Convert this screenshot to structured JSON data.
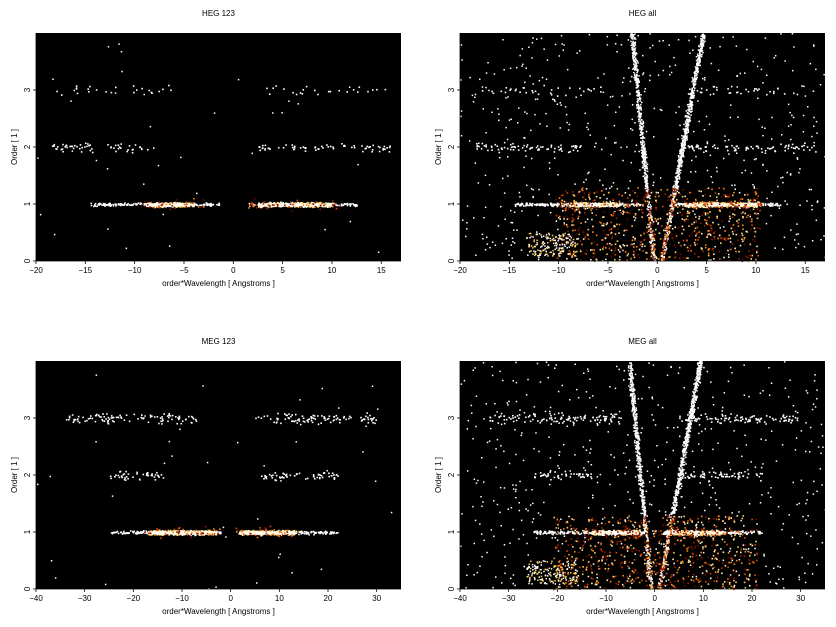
{
  "chart_data": [
    {
      "type": "heatmap",
      "title": "HEG 123",
      "xlabel": "order*Wavelength [ Angstroms ]",
      "ylabel": "Order [ 1 ]",
      "xlim": [
        -20,
        17
      ],
      "ylim": [
        0,
        4
      ],
      "xticks": [
        -20,
        -15,
        -10,
        -5,
        0,
        5,
        10,
        15
      ],
      "yticks": [
        0,
        1,
        2,
        3
      ],
      "background": "#000000",
      "grid": false,
      "bands": [
        {
          "order": 1,
          "ranges": [
            [
              -14.5,
              -1.5
            ],
            [
              1.5,
              12.5
            ]
          ],
          "core": [
            [
              -9,
              -4
            ],
            [
              2.5,
              10
            ]
          ],
          "density": 0.55
        },
        {
          "order": 2,
          "ranges": [
            [
              -18.5,
              -7.5
            ],
            [
              2.5,
              16
            ]
          ],
          "density": 0.18
        },
        {
          "order": 3,
          "ranges": [
            [
              -18.5,
              -5
            ],
            [
              3,
              16
            ]
          ],
          "density": 0.05
        }
      ],
      "wedge": false
    },
    {
      "type": "heatmap",
      "title": "HEG all",
      "xlabel": "order*Wavelength [ Angstroms ]",
      "ylabel": "Order [ 1 ]",
      "xlim": [
        -20,
        17
      ],
      "ylim": [
        0,
        4
      ],
      "xticks": [
        -20,
        -15,
        -10,
        -5,
        0,
        5,
        10,
        15
      ],
      "yticks": [
        0,
        1,
        2,
        3
      ],
      "background": "#000000",
      "grid": false,
      "bands": [
        {
          "order": 1,
          "ranges": [
            [
              -14.5,
              -1.5
            ],
            [
              1.5,
              12.5
            ]
          ],
          "core": [
            [
              -9,
              -4
            ],
            [
              2.5,
              10
            ]
          ],
          "density": 0.6
        },
        {
          "order": 2,
          "ranges": [
            [
              -18.5,
              -7.5
            ],
            [
              2.5,
              16
            ]
          ],
          "density": 0.22
        },
        {
          "order": 3,
          "ranges": [
            [
              -18.5,
              -5
            ],
            [
              3,
              16
            ]
          ],
          "density": 0.08
        }
      ],
      "wedge": true
    },
    {
      "type": "heatmap",
      "title": "MEG 123",
      "xlabel": "order*Wavelength [ Angstroms ]",
      "ylabel": "Order [ 1 ]",
      "xlim": [
        -40,
        35
      ],
      "ylim": [
        0,
        4
      ],
      "xticks": [
        -40,
        -30,
        -20,
        -10,
        0,
        10,
        20,
        30
      ],
      "yticks": [
        0,
        1,
        2,
        3
      ],
      "background": "#000000",
      "grid": false,
      "bands": [
        {
          "order": 1,
          "ranges": [
            [
              -25,
              -2
            ],
            [
              1.5,
              22
            ]
          ],
          "core": [
            [
              -17,
              -3
            ],
            [
              2,
              13
            ]
          ],
          "density": 0.6
        },
        {
          "order": 2,
          "ranges": [
            [
              -25,
              -13
            ],
            [
              5,
              22
            ]
          ],
          "density": 0.25
        },
        {
          "order": 3,
          "ranges": [
            [
              -34,
              -7
            ],
            [
              5,
              30
            ]
          ],
          "density": 0.3
        }
      ],
      "wedge": false
    },
    {
      "type": "heatmap",
      "title": "MEG all",
      "xlabel": "order*Wavelength [ Angstroms ]",
      "ylabel": "Order [ 1 ]",
      "xlim": [
        -40,
        35
      ],
      "ylim": [
        0,
        4
      ],
      "xticks": [
        -40,
        -30,
        -20,
        -10,
        0,
        10,
        20,
        30
      ],
      "yticks": [
        0,
        1,
        2,
        3
      ],
      "background": "#000000",
      "grid": false,
      "bands": [
        {
          "order": 1,
          "ranges": [
            [
              -25,
              -2
            ],
            [
              1.5,
              22
            ]
          ],
          "core": [
            [
              -13,
              -3
            ],
            [
              2,
              14
            ]
          ],
          "density": 0.65
        },
        {
          "order": 2,
          "ranges": [
            [
              -25,
              -13
            ],
            [
              5,
              22
            ]
          ],
          "density": 0.28
        },
        {
          "order": 3,
          "ranges": [
            [
              -34,
              -7
            ],
            [
              5,
              30
            ]
          ],
          "density": 0.33
        }
      ],
      "wedge": true
    }
  ]
}
